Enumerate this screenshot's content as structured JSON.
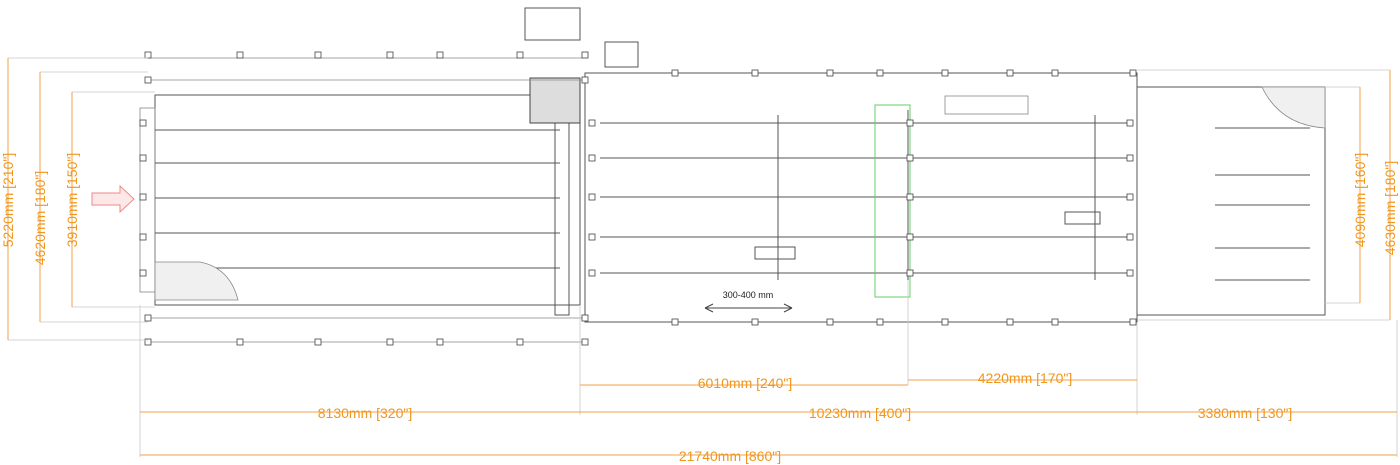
{
  "dimensions": [
    {
      "label": "5220mm [210\"]"
    },
    {
      "label": "4620mm [180\"]"
    },
    {
      "label": "3910mm [150\"]"
    },
    {
      "label": "4090mm [160\"]"
    },
    {
      "label": "4630mm [180\"]"
    },
    {
      "label": "6010mm [240\"]"
    },
    {
      "label": "4220mm [170\"]"
    },
    {
      "label": "8130mm [320\"]"
    },
    {
      "label": "10230mm [400\"]"
    },
    {
      "label": "3380mm [130\"]"
    },
    {
      "label": "21740mm [860\"]"
    }
  ],
  "note": "300-400 mm"
}
